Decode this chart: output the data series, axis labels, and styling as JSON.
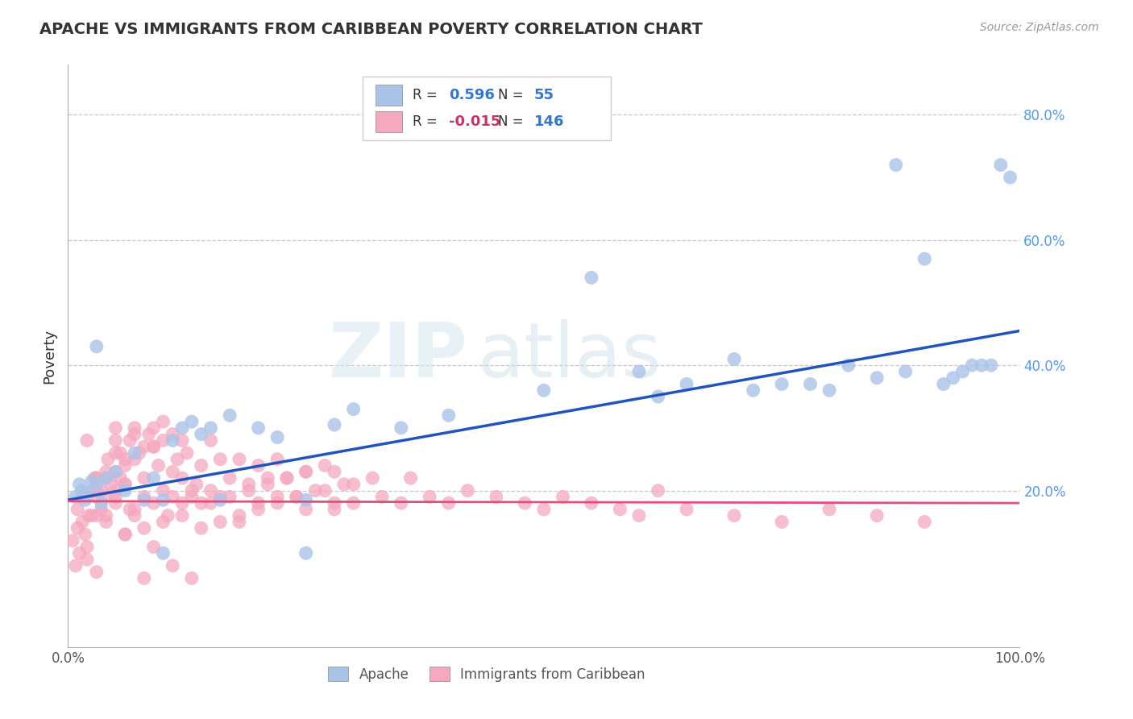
{
  "title": "APACHE VS IMMIGRANTS FROM CARIBBEAN POVERTY CORRELATION CHART",
  "source": "Source: ZipAtlas.com",
  "ylabel": "Poverty",
  "xlim": [
    0,
    1.0
  ],
  "ylim": [
    -0.05,
    0.88
  ],
  "grid_color": "#c8c8c8",
  "background_color": "#ffffff",
  "legend_R1": "0.596",
  "legend_N1": "55",
  "legend_R2": "-0.015",
  "legend_N2": "146",
  "blue_color": "#aac4e8",
  "pink_color": "#f5a8c0",
  "line_blue": "#2255bb",
  "line_pink": "#e0507a",
  "apache_x": [
    0.008,
    0.012,
    0.015,
    0.018,
    0.02,
    0.025,
    0.03,
    0.03,
    0.035,
    0.04,
    0.05,
    0.06,
    0.07,
    0.08,
    0.09,
    0.1,
    0.11,
    0.12,
    0.13,
    0.14,
    0.15,
    0.16,
    0.17,
    0.2,
    0.22,
    0.25,
    0.28,
    0.3,
    0.35,
    0.4,
    0.5,
    0.55,
    0.6,
    0.62,
    0.65,
    0.7,
    0.72,
    0.75,
    0.78,
    0.8,
    0.82,
    0.85,
    0.87,
    0.88,
    0.9,
    0.92,
    0.93,
    0.94,
    0.95,
    0.96,
    0.97,
    0.98,
    0.99,
    0.1,
    0.25
  ],
  "apache_y": [
    0.19,
    0.21,
    0.2,
    0.185,
    0.195,
    0.215,
    0.21,
    0.43,
    0.18,
    0.22,
    0.23,
    0.2,
    0.26,
    0.185,
    0.22,
    0.185,
    0.28,
    0.3,
    0.31,
    0.29,
    0.3,
    0.185,
    0.32,
    0.3,
    0.285,
    0.185,
    0.305,
    0.33,
    0.3,
    0.32,
    0.36,
    0.54,
    0.39,
    0.35,
    0.37,
    0.41,
    0.36,
    0.37,
    0.37,
    0.36,
    0.4,
    0.38,
    0.72,
    0.39,
    0.57,
    0.37,
    0.38,
    0.39,
    0.4,
    0.4,
    0.4,
    0.72,
    0.7,
    0.1,
    0.1
  ],
  "carib_x": [
    0.005,
    0.008,
    0.01,
    0.01,
    0.012,
    0.015,
    0.015,
    0.018,
    0.02,
    0.02,
    0.022,
    0.025,
    0.025,
    0.028,
    0.03,
    0.03,
    0.03,
    0.035,
    0.035,
    0.04,
    0.04,
    0.042,
    0.045,
    0.05,
    0.05,
    0.05,
    0.055,
    0.055,
    0.06,
    0.06,
    0.065,
    0.065,
    0.07,
    0.07,
    0.075,
    0.08,
    0.08,
    0.085,
    0.09,
    0.09,
    0.095,
    0.1,
    0.1,
    0.105,
    0.11,
    0.11,
    0.115,
    0.12,
    0.12,
    0.125,
    0.13,
    0.135,
    0.14,
    0.14,
    0.15,
    0.15,
    0.16,
    0.16,
    0.17,
    0.18,
    0.18,
    0.19,
    0.2,
    0.2,
    0.21,
    0.22,
    0.22,
    0.23,
    0.24,
    0.25,
    0.25,
    0.27,
    0.28,
    0.28,
    0.3,
    0.3,
    0.32,
    0.33,
    0.35,
    0.36,
    0.38,
    0.4,
    0.42,
    0.45,
    0.48,
    0.5,
    0.52,
    0.55,
    0.58,
    0.6,
    0.62,
    0.65,
    0.7,
    0.75,
    0.8,
    0.85,
    0.9,
    0.02,
    0.03,
    0.05,
    0.06,
    0.07,
    0.08,
    0.09,
    0.1,
    0.11,
    0.12,
    0.13,
    0.04,
    0.05,
    0.06,
    0.07,
    0.08,
    0.09,
    0.03,
    0.04,
    0.05,
    0.06,
    0.02,
    0.03,
    0.04,
    0.05,
    0.06,
    0.07,
    0.08,
    0.09,
    0.1,
    0.11,
    0.12,
    0.13,
    0.14,
    0.15,
    0.16,
    0.17,
    0.18,
    0.19,
    0.2,
    0.21,
    0.22,
    0.23,
    0.24,
    0.25,
    0.26,
    0.27,
    0.28,
    0.29
  ],
  "carib_y": [
    0.12,
    0.08,
    0.17,
    0.14,
    0.1,
    0.19,
    0.15,
    0.13,
    0.19,
    0.11,
    0.16,
    0.2,
    0.16,
    0.22,
    0.19,
    0.16,
    0.22,
    0.2,
    0.17,
    0.22,
    0.19,
    0.25,
    0.21,
    0.23,
    0.28,
    0.19,
    0.26,
    0.22,
    0.24,
    0.21,
    0.17,
    0.28,
    0.25,
    0.3,
    0.26,
    0.27,
    0.22,
    0.29,
    0.27,
    0.3,
    0.24,
    0.2,
    0.28,
    0.16,
    0.29,
    0.23,
    0.25,
    0.18,
    0.22,
    0.26,
    0.19,
    0.21,
    0.24,
    0.18,
    0.28,
    0.2,
    0.25,
    0.19,
    0.22,
    0.25,
    0.15,
    0.21,
    0.24,
    0.18,
    0.22,
    0.25,
    0.19,
    0.22,
    0.19,
    0.23,
    0.17,
    0.2,
    0.23,
    0.17,
    0.21,
    0.18,
    0.22,
    0.19,
    0.18,
    0.22,
    0.19,
    0.18,
    0.2,
    0.19,
    0.18,
    0.17,
    0.19,
    0.18,
    0.17,
    0.16,
    0.2,
    0.17,
    0.16,
    0.15,
    0.17,
    0.16,
    0.15,
    0.28,
    0.07,
    0.3,
    0.25,
    0.29,
    0.06,
    0.27,
    0.31,
    0.08,
    0.28,
    0.06,
    0.15,
    0.18,
    0.21,
    0.16,
    0.19,
    0.11,
    0.2,
    0.23,
    0.26,
    0.13,
    0.09,
    0.22,
    0.16,
    0.2,
    0.13,
    0.17,
    0.14,
    0.18,
    0.15,
    0.19,
    0.16,
    0.2,
    0.14,
    0.18,
    0.15,
    0.19,
    0.16,
    0.2,
    0.17,
    0.21,
    0.18,
    0.22,
    0.19,
    0.23,
    0.2,
    0.24,
    0.18,
    0.21
  ],
  "blue_line_x0": 0.0,
  "blue_line_y0": 0.185,
  "blue_line_x1": 1.0,
  "blue_line_y1": 0.455,
  "pink_line_x0": 0.0,
  "pink_line_y0": 0.183,
  "pink_line_x1": 1.0,
  "pink_line_y1": 0.18
}
